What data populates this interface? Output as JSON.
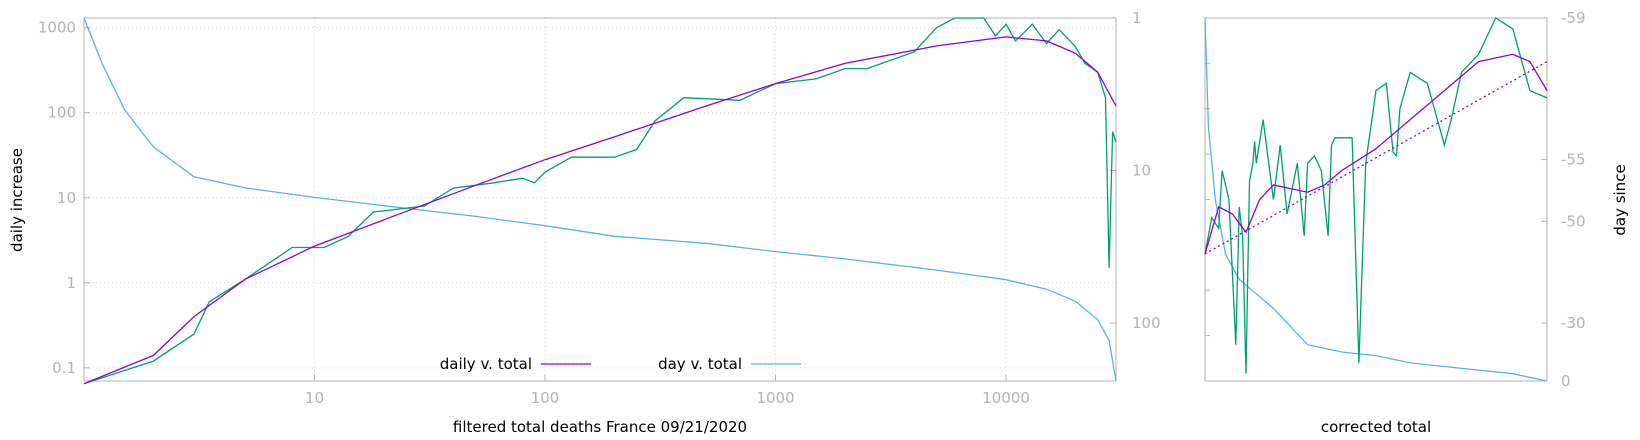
{
  "colors": {
    "daily": "#9400d3",
    "day": "#56b4e9",
    "raw": "#009e73",
    "axis": "#b3b3b3",
    "grid": "#d6d6d6"
  },
  "chart_data": [
    {
      "type": "line",
      "xlabel": "filtered total deaths France 09/21/2020",
      "ylabel": "daily increase",
      "y2label": "",
      "xscale": "log",
      "yscale": "log",
      "y2scale": "log reversed",
      "xlim": [
        1,
        30000
      ],
      "ylim": [
        0.07,
        1300
      ],
      "y2lim": [
        1,
        240
      ],
      "grid": true,
      "legend_position": "bottom-center",
      "x_ticks": [
        "10",
        "100",
        "1000",
        "10000"
      ],
      "y_ticks": [
        "0.1",
        "1",
        "10",
        "100",
        "1000"
      ],
      "y2_ticks": [
        "1",
        "10",
        "100"
      ],
      "series": [
        {
          "key": "daily",
          "name": "daily v. total",
          "axis": "y",
          "x": [
            1,
            2,
            3,
            5,
            10,
            20,
            50,
            100,
            200,
            500,
            1000,
            2000,
            5000,
            10000,
            15000,
            20000,
            25000,
            30000
          ],
          "y": [
            0.065,
            0.14,
            0.4,
            1.1,
            2.7,
            5.5,
            14,
            28,
            52,
            120,
            220,
            380,
            610,
            780,
            700,
            500,
            300,
            120
          ]
        },
        {
          "key": "raw",
          "axis": "y",
          "x": [
            1,
            2,
            3,
            3.5,
            5,
            8,
            11,
            14,
            18,
            30,
            40,
            60,
            80,
            90,
            100,
            130,
            200,
            250,
            300,
            400,
            700,
            1000,
            1500,
            2000,
            2500,
            4000,
            5000,
            6000,
            8000,
            9000,
            10000,
            11000,
            13000,
            15000,
            17000,
            20000,
            22000,
            25000,
            27000,
            28000,
            29000,
            30000
          ],
          "y": [
            0.065,
            0.12,
            0.25,
            0.6,
            1.1,
            2.6,
            2.6,
            3.5,
            6.8,
            8,
            13,
            15,
            17,
            15,
            20,
            30,
            30,
            37,
            80,
            150,
            140,
            220,
            250,
            330,
            330,
            520,
            1000,
            1300,
            1300,
            800,
            1100,
            700,
            1100,
            650,
            950,
            600,
            380,
            300,
            150,
            1.5,
            60,
            45
          ]
        },
        {
          "key": "day",
          "name": "day v. total",
          "axis": "y2",
          "x": [
            1,
            1.2,
            1.5,
            2,
            3,
            5,
            10,
            20,
            50,
            100,
            200,
            500,
            1000,
            2000,
            5000,
            10000,
            15000,
            20000,
            25000,
            28000,
            30000
          ],
          "y": [
            1,
            2,
            4,
            7,
            11,
            13,
            15,
            17,
            20,
            23,
            27,
            30,
            34,
            38,
            45,
            52,
            60,
            72,
            95,
            130,
            240
          ]
        }
      ]
    },
    {
      "type": "line",
      "xlabel": "corrected total",
      "ylabel": "",
      "y2label": "day since",
      "y2_ticks": [
        "-59",
        "-55",
        "-50",
        "-30",
        "0"
      ],
      "xlim": [
        0,
        1
      ],
      "ylim": [
        0,
        1
      ],
      "series": [
        {
          "key": "day",
          "axis": "y2",
          "x": [
            0,
            0.01,
            0.03,
            0.06,
            0.1,
            0.15,
            0.2,
            0.25,
            0.3,
            0.4,
            0.5,
            0.6,
            0.7,
            0.8,
            0.9,
            1.0
          ],
          "y": [
            1,
            0.7,
            0.5,
            0.35,
            0.28,
            0.24,
            0.2,
            0.15,
            0.1,
            0.08,
            0.07,
            0.05,
            0.04,
            0.03,
            0.02,
            0
          ]
        },
        {
          "key": "daily",
          "axis": "y",
          "x": [
            0,
            0.04,
            0.08,
            0.12,
            0.16,
            0.2,
            0.3,
            0.35,
            0.4,
            0.5,
            0.6,
            0.7,
            0.8,
            0.9,
            0.95,
            1.0
          ],
          "y": [
            0.35,
            0.48,
            0.46,
            0.41,
            0.5,
            0.54,
            0.52,
            0.54,
            0.58,
            0.64,
            0.72,
            0.8,
            0.88,
            0.9,
            0.88,
            0.8
          ]
        },
        {
          "key": "daily_fit",
          "axis": "y",
          "x": [
            0,
            1.0
          ],
          "y": [
            0.35,
            0.88
          ]
        },
        {
          "key": "raw",
          "axis": "y",
          "x": [
            0,
            0.02,
            0.04,
            0.05,
            0.06,
            0.07,
            0.09,
            0.1,
            0.11,
            0.12,
            0.125,
            0.13,
            0.14,
            0.145,
            0.15,
            0.17,
            0.2,
            0.22,
            0.24,
            0.27,
            0.29,
            0.3,
            0.32,
            0.34,
            0.36,
            0.37,
            0.38,
            0.4,
            0.43,
            0.45,
            0.47,
            0.5,
            0.53,
            0.55,
            0.56,
            0.57,
            0.6,
            0.65,
            0.7,
            0.72,
            0.75,
            0.8,
            0.85,
            0.9,
            0.95,
            1.0
          ],
          "y": [
            0.35,
            0.45,
            0.42,
            0.58,
            0.54,
            0.5,
            0.1,
            0.48,
            0.4,
            0.02,
            0.3,
            0.55,
            0.6,
            0.66,
            0.6,
            0.72,
            0.5,
            0.65,
            0.46,
            0.6,
            0.4,
            0.6,
            0.62,
            0.58,
            0.4,
            0.65,
            0.67,
            0.67,
            0.67,
            0.05,
            0.6,
            0.8,
            0.82,
            0.63,
            0.62,
            0.75,
            0.85,
            0.82,
            0.65,
            0.72,
            0.85,
            0.9,
            1.0,
            0.97,
            0.8,
            0.78
          ]
        }
      ]
    }
  ]
}
